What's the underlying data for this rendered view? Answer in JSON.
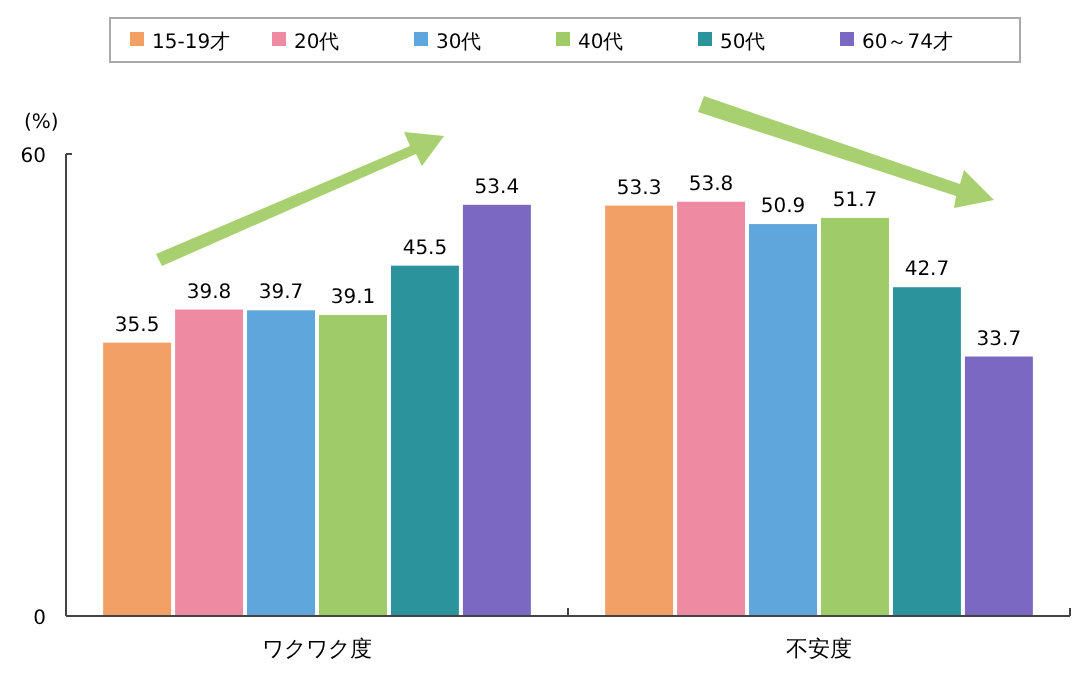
{
  "chart_data": {
    "type": "bar",
    "ylabel": "(%)",
    "categories": [
      "ワクワク度",
      "不安度"
    ],
    "series": [
      {
        "name": "15-19才",
        "color": "#f2a066",
        "values": [
          35.5,
          53.3
        ]
      },
      {
        "name": "20代",
        "color": "#ee8aa2",
        "values": [
          39.8,
          53.8
        ]
      },
      {
        "name": "30代",
        "color": "#5ea6dc",
        "values": [
          39.7,
          50.9
        ]
      },
      {
        "name": "40代",
        "color": "#9fcb68",
        "values": [
          39.1,
          51.7
        ]
      },
      {
        "name": "50代",
        "color": "#2a939b",
        "values": [
          45.5,
          42.7
        ]
      },
      {
        "name": "60～74才",
        "color": "#7b68c2",
        "values": [
          53.4,
          33.7
        ]
      }
    ],
    "ylim": [
      0,
      60
    ],
    "yticks": [
      0,
      60
    ],
    "grid": false,
    "legend": "top",
    "data_labels": true
  }
}
